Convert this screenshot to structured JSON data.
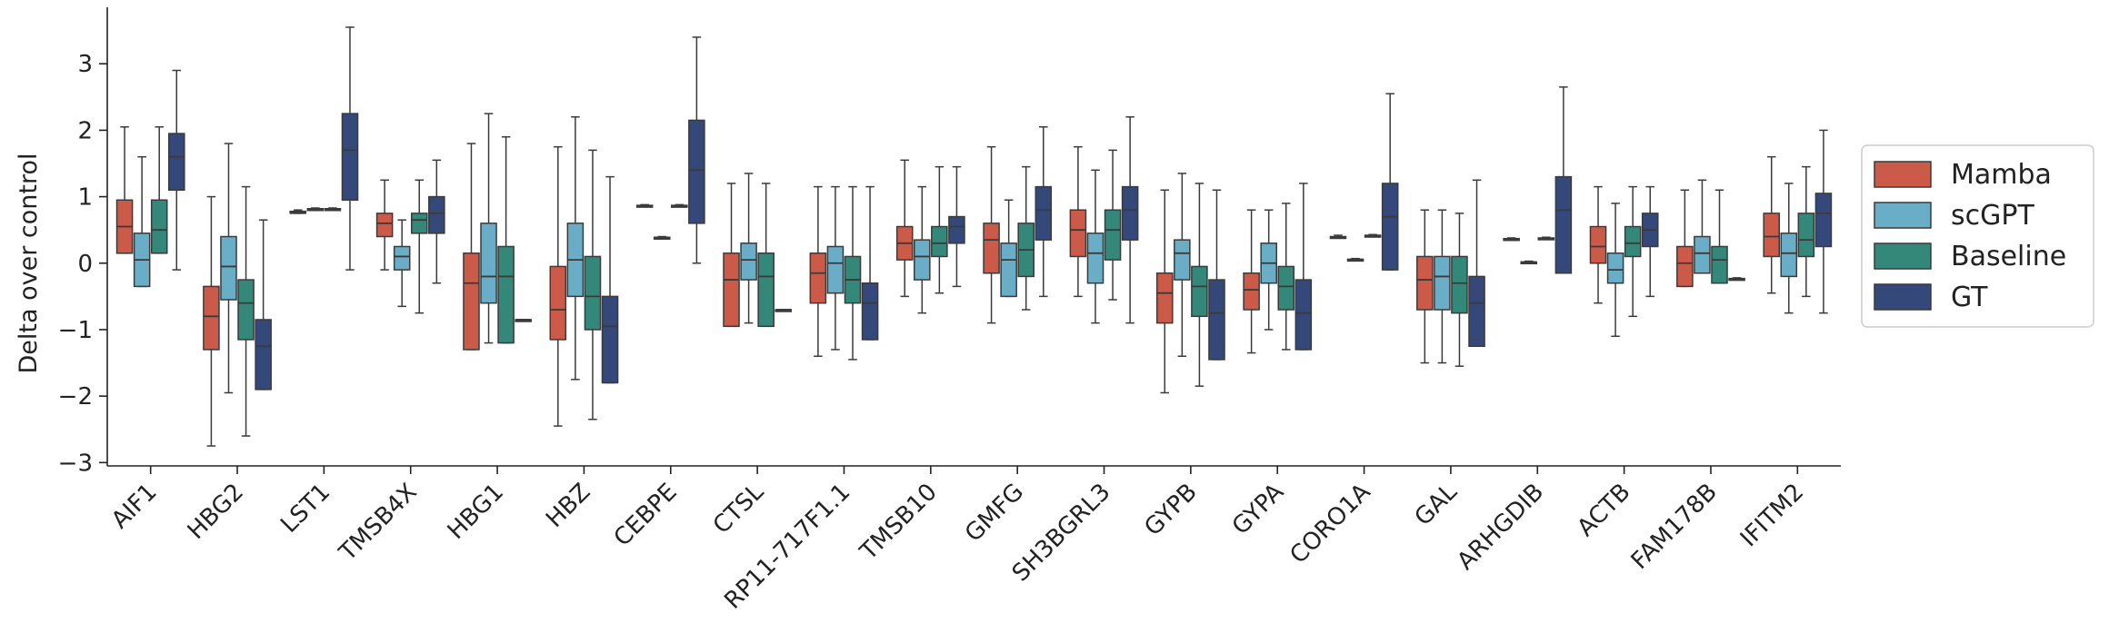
{
  "chart_data": {
    "type": "box",
    "title": "",
    "xlabel": "",
    "ylabel": "Delta over control",
    "ylim": [
      -3.05,
      3.85
    ],
    "yticks": [
      -3,
      -2,
      -1,
      0,
      1,
      2,
      3
    ],
    "grid": false,
    "legend_position": "right",
    "categories": [
      "AIF1",
      "HBG2",
      "LST1",
      "TMSB4X",
      "HBG1",
      "HBZ",
      "CEBPE",
      "CTSL",
      "RP11-717F1.1",
      "TMSB10",
      "GMFG",
      "SH3BGRL3",
      "GYPB",
      "GYPA",
      "CORO1A",
      "GAL",
      "ARHGDIB",
      "ACTB",
      "FAM178B",
      "IFITM2"
    ],
    "series": [
      {
        "name": "Mamba",
        "color": "#cc5a49",
        "boxes": [
          {
            "whislo": 0.15,
            "q1": 0.15,
            "med": 0.55,
            "q3": 0.95,
            "whishi": 2.05
          },
          {
            "whislo": -2.75,
            "q1": -1.3,
            "med": -0.8,
            "q3": -0.35,
            "whishi": 1.0
          },
          {
            "whislo": 0.75,
            "q1": 0.75,
            "med": 0.77,
            "q3": 0.78,
            "whishi": 0.8
          },
          {
            "whislo": -0.1,
            "q1": 0.4,
            "med": 0.6,
            "q3": 0.75,
            "whishi": 1.25
          },
          {
            "whislo": -1.3,
            "q1": -1.3,
            "med": -0.3,
            "q3": 0.15,
            "whishi": 1.8
          },
          {
            "whislo": -2.45,
            "q1": -1.15,
            "med": -0.7,
            "q3": -0.05,
            "whishi": 1.75
          },
          {
            "whislo": 0.85,
            "q1": 0.85,
            "med": 0.86,
            "q3": 0.87,
            "whishi": 0.88
          },
          {
            "whislo": -0.95,
            "q1": -0.95,
            "med": -0.25,
            "q3": 0.15,
            "whishi": 1.2
          },
          {
            "whislo": -1.4,
            "q1": -0.6,
            "med": -0.15,
            "q3": 0.15,
            "whishi": 1.15
          },
          {
            "whislo": -0.5,
            "q1": 0.05,
            "med": 0.3,
            "q3": 0.55,
            "whishi": 1.55
          },
          {
            "whislo": -0.9,
            "q1": -0.15,
            "med": 0.35,
            "q3": 0.6,
            "whishi": 1.75
          },
          {
            "whislo": -0.5,
            "q1": 0.1,
            "med": 0.5,
            "q3": 0.8,
            "whishi": 1.75
          },
          {
            "whislo": -1.95,
            "q1": -0.9,
            "med": -0.45,
            "q3": -0.15,
            "whishi": 1.1
          },
          {
            "whislo": -1.35,
            "q1": -0.7,
            "med": -0.4,
            "q3": -0.15,
            "whishi": 0.8
          },
          {
            "whislo": 0.38,
            "q1": 0.38,
            "med": 0.39,
            "q3": 0.4,
            "whishi": 0.42
          },
          {
            "whislo": -1.5,
            "q1": -0.7,
            "med": -0.25,
            "q3": 0.1,
            "whishi": 0.8
          },
          {
            "whislo": 0.35,
            "q1": 0.35,
            "med": 0.36,
            "q3": 0.37,
            "whishi": 0.38
          },
          {
            "whislo": -0.6,
            "q1": 0.0,
            "med": 0.25,
            "q3": 0.55,
            "whishi": 1.15
          },
          {
            "whislo": -0.35,
            "q1": -0.35,
            "med": 0.0,
            "q3": 0.25,
            "whishi": 1.1
          },
          {
            "whislo": -0.45,
            "q1": 0.1,
            "med": 0.4,
            "q3": 0.75,
            "whishi": 1.6
          }
        ]
      },
      {
        "name": "scGPT",
        "color": "#69aec6",
        "boxes": [
          {
            "whislo": -0.35,
            "q1": -0.35,
            "med": 0.05,
            "q3": 0.45,
            "whishi": 1.6
          },
          {
            "whislo": -1.95,
            "q1": -0.55,
            "med": -0.05,
            "q3": 0.4,
            "whishi": 1.8
          },
          {
            "whislo": 0.8,
            "q1": 0.8,
            "med": 0.81,
            "q3": 0.82,
            "whishi": 0.83
          },
          {
            "whislo": -0.65,
            "q1": -0.1,
            "med": 0.1,
            "q3": 0.25,
            "whishi": 0.65
          },
          {
            "whislo": -1.2,
            "q1": -0.6,
            "med": -0.2,
            "q3": 0.6,
            "whishi": 2.25
          },
          {
            "whislo": -1.75,
            "q1": -0.5,
            "med": 0.05,
            "q3": 0.6,
            "whishi": 2.2
          },
          {
            "whislo": 0.37,
            "q1": 0.37,
            "med": 0.38,
            "q3": 0.39,
            "whishi": 0.4
          },
          {
            "whislo": -0.9,
            "q1": -0.25,
            "med": 0.05,
            "q3": 0.3,
            "whishi": 1.35
          },
          {
            "whislo": -1.3,
            "q1": -0.45,
            "med": 0.0,
            "q3": 0.25,
            "whishi": 1.15
          },
          {
            "whislo": -0.75,
            "q1": -0.25,
            "med": 0.1,
            "q3": 0.35,
            "whishi": 1.15
          },
          {
            "whislo": -0.5,
            "q1": -0.5,
            "med": 0.05,
            "q3": 0.3,
            "whishi": 0.95
          },
          {
            "whislo": -0.9,
            "q1": -0.3,
            "med": 0.15,
            "q3": 0.45,
            "whishi": 1.4
          },
          {
            "whislo": -1.4,
            "q1": -0.25,
            "med": 0.15,
            "q3": 0.35,
            "whishi": 1.35
          },
          {
            "whislo": -1.0,
            "q1": -0.3,
            "med": 0.0,
            "q3": 0.3,
            "whishi": 0.8
          },
          {
            "whislo": 0.04,
            "q1": 0.04,
            "med": 0.05,
            "q3": 0.06,
            "whishi": 0.07
          },
          {
            "whislo": -1.5,
            "q1": -0.7,
            "med": -0.2,
            "q3": 0.1,
            "whishi": 0.8
          },
          {
            "whislo": 0.0,
            "q1": 0.0,
            "med": 0.01,
            "q3": 0.02,
            "whishi": 0.03
          },
          {
            "whislo": -1.1,
            "q1": -0.3,
            "med": -0.1,
            "q3": 0.15,
            "whishi": 0.9
          },
          {
            "whislo": -0.15,
            "q1": -0.15,
            "med": 0.15,
            "q3": 0.4,
            "whishi": 1.25
          },
          {
            "whislo": -0.75,
            "q1": -0.2,
            "med": 0.15,
            "q3": 0.45,
            "whishi": 1.2
          }
        ]
      },
      {
        "name": "Baseline",
        "color": "#34887a",
        "boxes": [
          {
            "whislo": 0.15,
            "q1": 0.15,
            "med": 0.5,
            "q3": 0.95,
            "whishi": 2.05
          },
          {
            "whislo": -2.6,
            "q1": -1.15,
            "med": -0.6,
            "q3": -0.25,
            "whishi": 1.15
          },
          {
            "whislo": 0.8,
            "q1": 0.8,
            "med": 0.81,
            "q3": 0.82,
            "whishi": 0.83
          },
          {
            "whislo": -0.75,
            "q1": 0.45,
            "med": 0.65,
            "q3": 0.75,
            "whishi": 1.25
          },
          {
            "whislo": -1.2,
            "q1": -1.2,
            "med": -0.2,
            "q3": 0.25,
            "whishi": 1.9
          },
          {
            "whislo": -2.35,
            "q1": -1.0,
            "med": -0.5,
            "q3": 0.1,
            "whishi": 1.7
          },
          {
            "whislo": 0.85,
            "q1": 0.85,
            "med": 0.86,
            "q3": 0.87,
            "whishi": 0.88
          },
          {
            "whislo": -0.95,
            "q1": -0.95,
            "med": -0.2,
            "q3": 0.15,
            "whishi": 1.2
          },
          {
            "whislo": -1.45,
            "q1": -0.6,
            "med": -0.25,
            "q3": 0.1,
            "whishi": 1.15
          },
          {
            "whislo": -0.45,
            "q1": 0.1,
            "med": 0.3,
            "q3": 0.55,
            "whishi": 1.45
          },
          {
            "whislo": -0.7,
            "q1": -0.2,
            "med": 0.2,
            "q3": 0.6,
            "whishi": 1.45
          },
          {
            "whislo": -0.55,
            "q1": 0.05,
            "med": 0.5,
            "q3": 0.8,
            "whishi": 1.7
          },
          {
            "whislo": -1.85,
            "q1": -0.8,
            "med": -0.35,
            "q3": -0.05,
            "whishi": 1.2
          },
          {
            "whislo": -1.3,
            "q1": -0.7,
            "med": -0.35,
            "q3": -0.05,
            "whishi": 0.9
          },
          {
            "whislo": 0.4,
            "q1": 0.4,
            "med": 0.41,
            "q3": 0.42,
            "whishi": 0.43
          },
          {
            "whislo": -1.55,
            "q1": -0.75,
            "med": -0.3,
            "q3": 0.1,
            "whishi": 0.75
          },
          {
            "whislo": 0.36,
            "q1": 0.36,
            "med": 0.37,
            "q3": 0.38,
            "whishi": 0.39
          },
          {
            "whislo": -0.8,
            "q1": 0.1,
            "med": 0.3,
            "q3": 0.55,
            "whishi": 1.15
          },
          {
            "whislo": -0.3,
            "q1": -0.3,
            "med": 0.05,
            "q3": 0.25,
            "whishi": 1.1
          },
          {
            "whislo": -0.5,
            "q1": 0.1,
            "med": 0.35,
            "q3": 0.75,
            "whishi": 1.45
          }
        ]
      },
      {
        "name": "GT",
        "color": "#34497a",
        "boxes": [
          {
            "whislo": -0.1,
            "q1": 1.1,
            "med": 1.6,
            "q3": 1.95,
            "whishi": 2.9
          },
          {
            "whislo": -1.9,
            "q1": -1.9,
            "med": -1.25,
            "q3": -0.85,
            "whishi": 0.65
          },
          {
            "whislo": -0.1,
            "q1": 0.95,
            "med": 1.7,
            "q3": 2.25,
            "whishi": 3.55
          },
          {
            "whislo": -0.3,
            "q1": 0.45,
            "med": 0.75,
            "q3": 1.0,
            "whishi": 1.55
          },
          {
            "whislo": -0.85,
            "q1": -0.85,
            "med": -0.85,
            "q3": -0.85,
            "whishi": -0.85
          },
          {
            "whislo": -1.8,
            "q1": -1.8,
            "med": -0.95,
            "q3": -0.5,
            "whishi": 1.3
          },
          {
            "whislo": 0.0,
            "q1": 0.6,
            "med": 1.4,
            "q3": 2.15,
            "whishi": 3.4
          },
          {
            "whislo": -0.7,
            "q1": -0.7,
            "med": -0.7,
            "q3": -0.7,
            "whishi": -0.7
          },
          {
            "whislo": -1.15,
            "q1": -1.15,
            "med": -0.6,
            "q3": -0.3,
            "whishi": 1.15
          },
          {
            "whislo": -0.35,
            "q1": 0.3,
            "med": 0.55,
            "q3": 0.7,
            "whishi": 1.45
          },
          {
            "whislo": -0.5,
            "q1": 0.35,
            "med": 0.8,
            "q3": 1.15,
            "whishi": 2.05
          },
          {
            "whislo": -0.9,
            "q1": 0.35,
            "med": 0.8,
            "q3": 1.15,
            "whishi": 2.2
          },
          {
            "whislo": -1.45,
            "q1": -1.45,
            "med": -0.75,
            "q3": -0.25,
            "whishi": 1.1
          },
          {
            "whislo": -1.3,
            "q1": -1.3,
            "med": -0.75,
            "q3": -0.25,
            "whishi": 1.2
          },
          {
            "whislo": -0.1,
            "q1": -0.1,
            "med": 0.7,
            "q3": 1.2,
            "whishi": 2.55
          },
          {
            "whislo": -1.25,
            "q1": -1.25,
            "med": -0.6,
            "q3": -0.2,
            "whishi": 1.25
          },
          {
            "whislo": -0.15,
            "q1": -0.15,
            "med": 0.8,
            "q3": 1.3,
            "whishi": 2.65
          },
          {
            "whislo": -0.5,
            "q1": 0.25,
            "med": 0.5,
            "q3": 0.75,
            "whishi": 1.15
          },
          {
            "whislo": -0.25,
            "q1": -0.25,
            "med": -0.24,
            "q3": -0.23,
            "whishi": -0.22
          },
          {
            "whislo": -0.75,
            "q1": 0.25,
            "med": 0.75,
            "q3": 1.05,
            "whishi": 2.0
          }
        ]
      }
    ]
  }
}
